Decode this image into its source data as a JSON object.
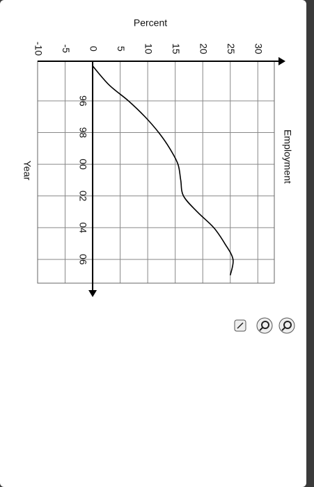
{
  "chart_data": {
    "type": "line",
    "title": "Employment",
    "y_label": "Percent",
    "x_label": "Year",
    "x": [
      1993.8,
      1995,
      1996,
      1997,
      1998,
      1999,
      2000,
      2001,
      2002,
      2003,
      2004,
      2005,
      2006,
      2007
    ],
    "series": [
      {
        "name": "Employment",
        "color": "#000000",
        "values": [
          0,
          3,
          6.5,
          9.5,
          12,
          14,
          15.5,
          16,
          16.5,
          19,
          22,
          24,
          25.5,
          25
        ]
      }
    ],
    "xlim": [
      1993.5,
      2007.5
    ],
    "xticks": [
      {
        "value": 1996,
        "label": "96"
      },
      {
        "value": 1998,
        "label": "98"
      },
      {
        "value": 2000,
        "label": "00"
      },
      {
        "value": 2002,
        "label": "02"
      },
      {
        "value": 2004,
        "label": "04"
      },
      {
        "value": 2006,
        "label": "06"
      }
    ],
    "ylim": [
      -10,
      33
    ],
    "yticks": [
      -10,
      -5,
      0,
      5,
      10,
      15,
      20,
      25,
      30
    ],
    "grid": true
  }
}
